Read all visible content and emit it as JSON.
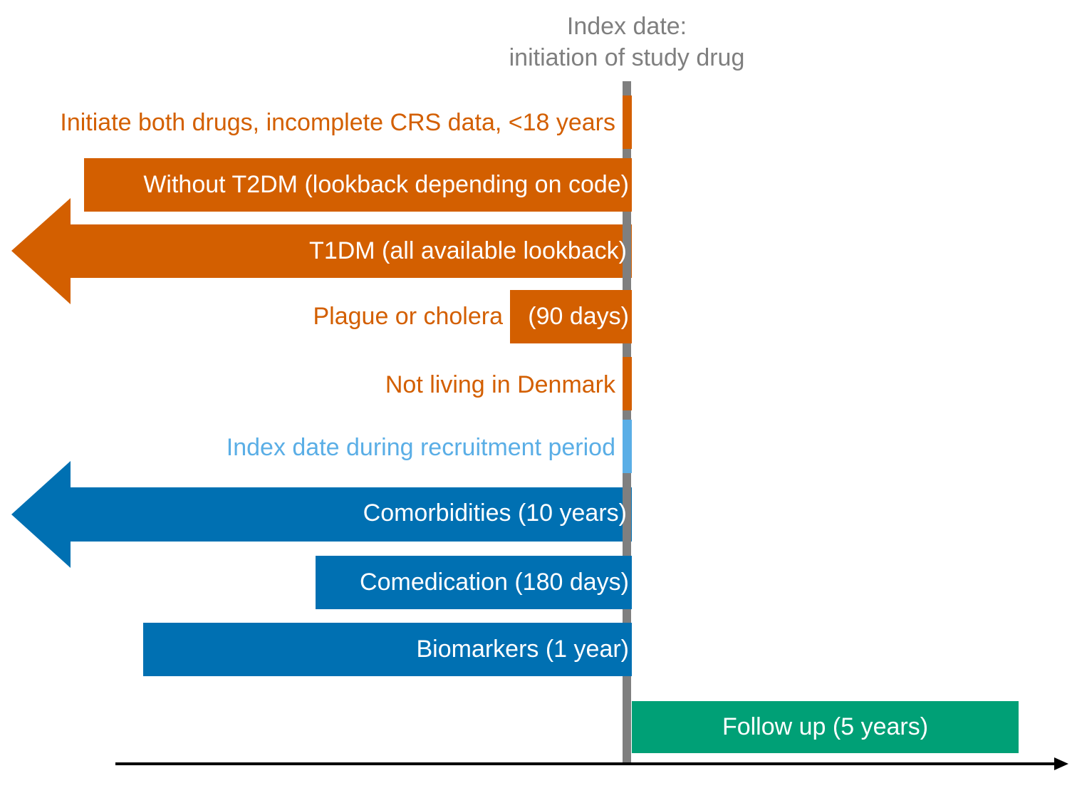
{
  "header": {
    "line1": "Index date:",
    "line2": "initiation of study drug"
  },
  "rows": {
    "initiate_both": "Initiate both drugs, incomplete CRS data, <18 years",
    "without_t2dm": "Without T2DM (lookback depending on code)",
    "t1dm": "T1DM (all available lookback)",
    "plague": "Plague or cholera",
    "plague_window": "(90 days)",
    "not_living": "Not living in Denmark",
    "index_recruitment": "Index date during recruitment period",
    "comorbidities": "Comorbidities (10 years)",
    "comedication": "Comedication (180 days)",
    "biomarkers": "Biomarkers (1 year)",
    "follow_up": "Follow up (5 years)"
  },
  "colors": {
    "exclusion": "#d35f00",
    "covariate": "#0070b2",
    "recruitment": "#5aaee6",
    "follow_up": "#00a076",
    "index_line": "#7f7f7f",
    "header_text": "#7f7f7f",
    "axis": "#000000"
  }
}
